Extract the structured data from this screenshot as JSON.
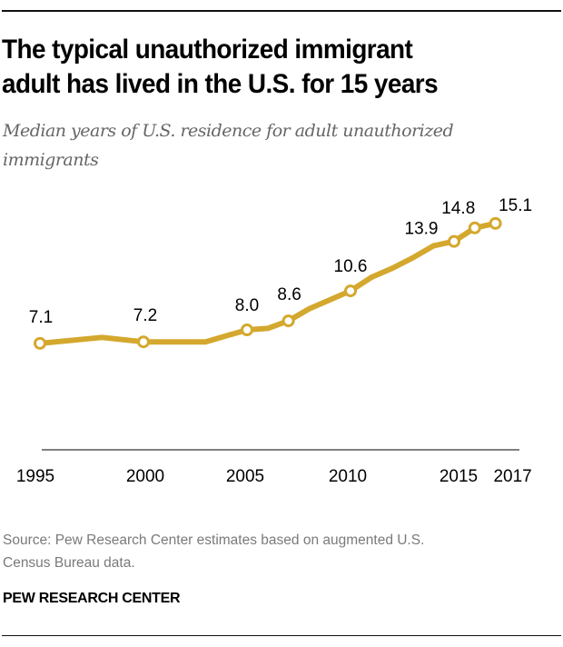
{
  "header": {
    "title_line1": "The typical unauthorized immigrant",
    "title_line2": "adult has lived in the U.S. for 15 years",
    "subtitle_line1": "Median years of U.S. residence for adult unauthorized",
    "subtitle_line2": "immigrants"
  },
  "footer": {
    "source_line1": "Source: Pew Research Center estimates based on augmented U.S.",
    "source_line2": "Census Bureau data.",
    "brand": "PEW RESEARCH CENTER"
  },
  "colors": {
    "line": "#D4A82E",
    "marker_fill": "#FFFFFF",
    "axis": "#808080",
    "text": "#000000"
  },
  "chart_data": {
    "type": "line",
    "title": "The typical unauthorized immigrant adult has lived in the U.S. for 15 years",
    "subtitle": "Median years of U.S. residence for adult unauthorized immigrants",
    "xlabel": "",
    "ylabel": "",
    "x": [
      1995,
      1998,
      2000,
      2003,
      2005,
      2006,
      2007,
      2008,
      2009,
      2010,
      2011,
      2012,
      2013,
      2014,
      2015,
      2016,
      2017
    ],
    "series": [
      {
        "name": "Median years of U.S. residence",
        "values": [
          7.1,
          7.5,
          7.2,
          7.2,
          8.0,
          8.1,
          8.6,
          9.4,
          10.0,
          10.6,
          11.5,
          12.1,
          12.8,
          13.6,
          13.9,
          14.8,
          15.1
        ]
      }
    ],
    "markers": [
      {
        "x": 1995,
        "value": 7.1,
        "label": "7.1"
      },
      {
        "x": 2000,
        "value": 7.2,
        "label": "7.2"
      },
      {
        "x": 2005,
        "value": 8.0,
        "label": "8.0"
      },
      {
        "x": 2007,
        "value": 8.6,
        "label": "8.6"
      },
      {
        "x": 2010,
        "value": 10.6,
        "label": "10.6"
      },
      {
        "x": 2015,
        "value": 13.9,
        "label": "13.9"
      },
      {
        "x": 2016,
        "value": 14.8,
        "label": "14.8"
      },
      {
        "x": 2017,
        "value": 15.1,
        "label": "15.1"
      }
    ],
    "x_ticks": [
      {
        "value": 1995,
        "label": "1995"
      },
      {
        "value": 2000,
        "label": "2000"
      },
      {
        "value": 2005,
        "label": "2005"
      },
      {
        "value": 2010,
        "label": "2010"
      },
      {
        "value": 2015,
        "label": "2015"
      },
      {
        "value": 2017,
        "label": "2017"
      }
    ],
    "xlim": [
      1995,
      2017
    ],
    "ylim": [
      0,
      16
    ],
    "grid": false,
    "legend": "none"
  }
}
